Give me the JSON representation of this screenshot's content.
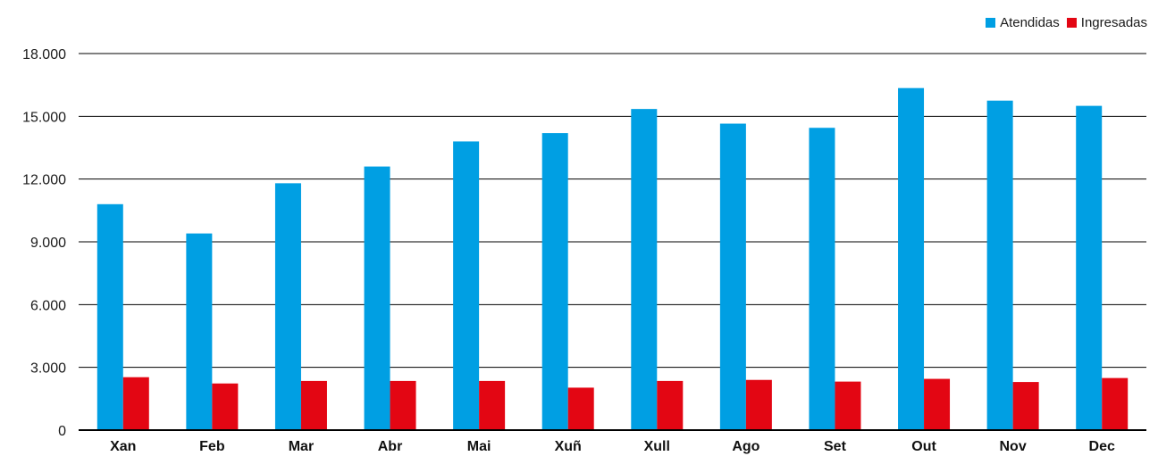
{
  "chart_data": {
    "type": "bar",
    "categories": [
      "Xan",
      "Feb",
      "Mar",
      "Abr",
      "Mai",
      "Xuñ",
      "Xull",
      "Ago",
      "Set",
      "Out",
      "Nov",
      "Dec"
    ],
    "series": [
      {
        "name": "Atendidas",
        "color": "#009fe3",
        "values": [
          10800,
          9400,
          11800,
          12600,
          13800,
          14200,
          15350,
          14650,
          14450,
          16350,
          15750,
          15500
        ]
      },
      {
        "name": "Ingresadas",
        "color": "#e30613",
        "values": [
          2530,
          2230,
          2350,
          2350,
          2350,
          2030,
          2350,
          2400,
          2320,
          2450,
          2300,
          2490
        ]
      }
    ],
    "ylim": [
      0,
      18000
    ],
    "yticks": [
      0,
      3000,
      6000,
      9000,
      12000,
      15000,
      18000
    ],
    "ytick_labels": [
      "0",
      "3.000",
      "6.000",
      "9.000",
      "12.000",
      "15.000",
      "18.000"
    ],
    "grid": "horizontal",
    "legend_position": "top-right"
  }
}
